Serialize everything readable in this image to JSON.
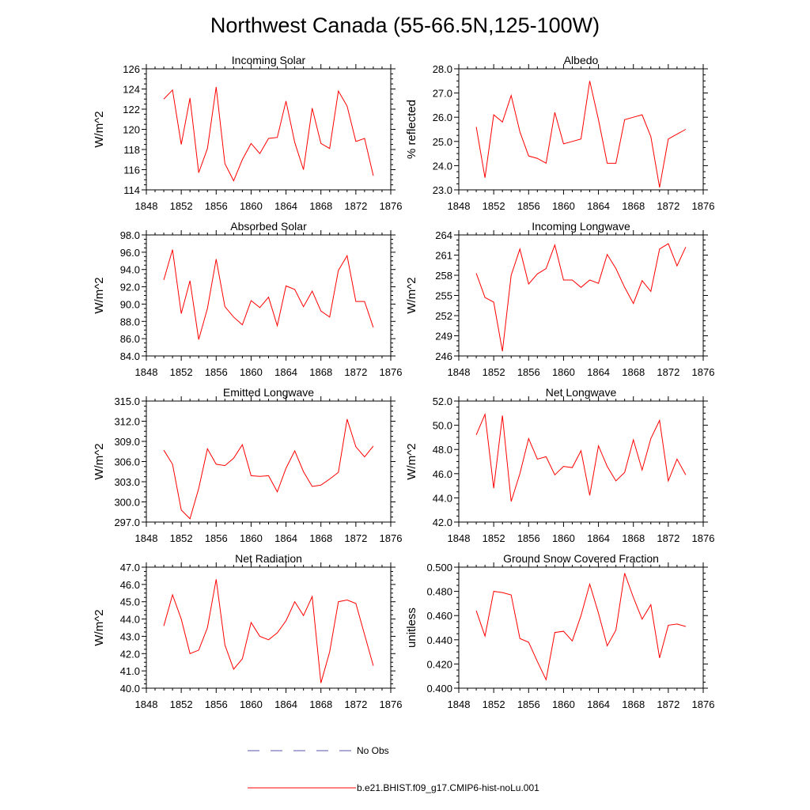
{
  "title": "Northwest Canada (55-66.5N,125-100W)",
  "legend": {
    "entries": [
      {
        "label": "No Obs",
        "color": "#5555aa",
        "dash": true
      },
      {
        "label": "b.e21.BHIST.f09_g17.CMIP6-hist-noLu.001",
        "color": "#ff0000",
        "dash": false
      }
    ]
  },
  "chart_data": [
    {
      "type": "line",
      "title": "Incoming Solar",
      "ylabel": "W/m^2",
      "xlim": [
        1848,
        1876
      ],
      "ylim": [
        114,
        126
      ],
      "xticks": [
        1848,
        1852,
        1856,
        1860,
        1864,
        1868,
        1872,
        1876
      ],
      "yticks": [
        114,
        116,
        118,
        120,
        122,
        124,
        126
      ],
      "ytick_labels": [
        "114",
        "116",
        "118",
        "120",
        "122",
        "124",
        "126"
      ],
      "series": [
        {
          "name": "b.e21.BHIST.f09_g17.CMIP6-hist-noLu.001",
          "color": "#ff0000",
          "x": [
            1850,
            1851,
            1852,
            1853,
            1854,
            1855,
            1856,
            1857,
            1858,
            1859,
            1860,
            1861,
            1862,
            1863,
            1864,
            1865,
            1866,
            1867,
            1868,
            1869,
            1870,
            1871,
            1872,
            1873,
            1874
          ],
          "y": [
            123.0,
            123.9,
            118.5,
            123.1,
            115.7,
            118.1,
            124.2,
            116.6,
            114.9,
            117.0,
            118.6,
            117.6,
            119.1,
            119.2,
            122.8,
            118.7,
            116.0,
            122.1,
            118.6,
            118.1,
            123.8,
            122.3,
            118.8,
            119.1,
            115.4
          ]
        }
      ]
    },
    {
      "type": "line",
      "title": "Albedo",
      "ylabel": "% reflected",
      "xlim": [
        1848,
        1876
      ],
      "ylim": [
        23.0,
        28.0
      ],
      "xticks": [
        1848,
        1852,
        1856,
        1860,
        1864,
        1868,
        1872,
        1876
      ],
      "yticks": [
        23,
        24,
        25,
        26,
        27,
        28
      ],
      "ytick_labels": [
        "23.0",
        "24.0",
        "25.0",
        "26.0",
        "27.0",
        "28.0"
      ],
      "series": [
        {
          "name": "b.e21.BHIST.f09_g17.CMIP6-hist-noLu.001",
          "color": "#ff0000",
          "x": [
            1850,
            1851,
            1852,
            1853,
            1854,
            1855,
            1856,
            1857,
            1858,
            1859,
            1860,
            1861,
            1862,
            1863,
            1864,
            1865,
            1866,
            1867,
            1868,
            1869,
            1870,
            1871,
            1872,
            1873,
            1874
          ],
          "y": [
            25.6,
            23.5,
            26.1,
            25.8,
            26.9,
            25.4,
            24.4,
            24.3,
            24.1,
            26.2,
            24.9,
            25.0,
            25.1,
            27.5,
            25.9,
            24.1,
            24.1,
            25.9,
            26.0,
            26.1,
            25.2,
            23.1,
            25.1,
            25.3,
            25.5
          ]
        }
      ]
    },
    {
      "type": "line",
      "title": "Absorbed Solar",
      "ylabel": "W/m^2",
      "xlim": [
        1848,
        1876
      ],
      "ylim": [
        84.0,
        98.0
      ],
      "xticks": [
        1848,
        1852,
        1856,
        1860,
        1864,
        1868,
        1872,
        1876
      ],
      "yticks": [
        84,
        86,
        88,
        90,
        92,
        94,
        96,
        98
      ],
      "ytick_labels": [
        "84.0",
        "86.0",
        "88.0",
        "90.0",
        "92.0",
        "94.0",
        "96.0",
        "98.0"
      ],
      "series": [
        {
          "name": "b.e21.BHIST.f09_g17.CMIP6-hist-noLu.001",
          "color": "#ff0000",
          "x": [
            1850,
            1851,
            1852,
            1853,
            1854,
            1855,
            1856,
            1857,
            1858,
            1859,
            1860,
            1861,
            1862,
            1863,
            1864,
            1865,
            1866,
            1867,
            1868,
            1869,
            1870,
            1871,
            1872,
            1873,
            1874
          ],
          "y": [
            92.8,
            96.3,
            88.9,
            92.7,
            85.9,
            89.5,
            95.2,
            89.7,
            88.5,
            87.6,
            90.4,
            89.6,
            90.8,
            87.5,
            92.1,
            91.7,
            89.7,
            91.5,
            89.2,
            88.5,
            93.9,
            95.6,
            90.3,
            90.3,
            87.3
          ]
        }
      ]
    },
    {
      "type": "line",
      "title": "Incoming Longwave",
      "ylabel": "W/m^2",
      "xlim": [
        1848,
        1876
      ],
      "ylim": [
        246,
        264
      ],
      "xticks": [
        1848,
        1852,
        1856,
        1860,
        1864,
        1868,
        1872,
        1876
      ],
      "yticks": [
        246,
        249,
        252,
        255,
        258,
        261,
        264
      ],
      "ytick_labels": [
        "246",
        "249",
        "252",
        "255",
        "258",
        "261",
        "264"
      ],
      "series": [
        {
          "name": "b.e21.BHIST.f09_g17.CMIP6-hist-noLu.001",
          "color": "#ff0000",
          "x": [
            1850,
            1851,
            1852,
            1853,
            1854,
            1855,
            1856,
            1857,
            1858,
            1859,
            1860,
            1861,
            1862,
            1863,
            1864,
            1865,
            1866,
            1867,
            1868,
            1869,
            1870,
            1871,
            1872,
            1873,
            1874
          ],
          "y": [
            258.3,
            254.7,
            254.0,
            246.7,
            258.0,
            261.9,
            256.7,
            258.2,
            259.0,
            262.5,
            257.3,
            257.3,
            256.2,
            257.3,
            256.8,
            261.1,
            259.0,
            256.2,
            253.8,
            257.2,
            255.6,
            261.9,
            262.7,
            259.4,
            262.2
          ]
        }
      ]
    },
    {
      "type": "line",
      "title": "Emitted Longwave",
      "ylabel": "W/m^2",
      "xlim": [
        1848,
        1876
      ],
      "ylim": [
        297.0,
        315.0
      ],
      "xticks": [
        1848,
        1852,
        1856,
        1860,
        1864,
        1868,
        1872,
        1876
      ],
      "yticks": [
        297,
        300,
        303,
        306,
        309,
        312,
        315
      ],
      "ytick_labels": [
        "297.0",
        "300.0",
        "303.0",
        "306.0",
        "309.0",
        "312.0",
        "315.0"
      ],
      "series": [
        {
          "name": "b.e21.BHIST.f09_g17.CMIP6-hist-noLu.001",
          "color": "#ff0000",
          "x": [
            1850,
            1851,
            1852,
            1853,
            1854,
            1855,
            1856,
            1857,
            1858,
            1859,
            1860,
            1861,
            1862,
            1863,
            1864,
            1865,
            1866,
            1867,
            1868,
            1869,
            1870,
            1871,
            1872,
            1873,
            1874
          ],
          "y": [
            307.7,
            305.6,
            298.8,
            297.5,
            302.0,
            307.9,
            305.6,
            305.4,
            306.5,
            308.5,
            303.9,
            303.8,
            303.9,
            301.5,
            305.0,
            307.6,
            304.5,
            302.3,
            302.5,
            303.4,
            304.4,
            312.3,
            308.2,
            306.7,
            308.3
          ]
        }
      ]
    },
    {
      "type": "line",
      "title": "Net Longwave",
      "ylabel": "W/m^2",
      "xlim": [
        1848,
        1876
      ],
      "ylim": [
        42.0,
        52.0
      ],
      "xticks": [
        1848,
        1852,
        1856,
        1860,
        1864,
        1868,
        1872,
        1876
      ],
      "yticks": [
        42,
        44,
        46,
        48,
        50,
        52
      ],
      "ytick_labels": [
        "42.0",
        "44.0",
        "46.0",
        "48.0",
        "50.0",
        "52.0"
      ],
      "series": [
        {
          "name": "b.e21.BHIST.f09_g17.CMIP6-hist-noLu.001",
          "color": "#ff0000",
          "x": [
            1850,
            1851,
            1852,
            1853,
            1854,
            1855,
            1856,
            1857,
            1858,
            1859,
            1860,
            1861,
            1862,
            1863,
            1864,
            1865,
            1866,
            1867,
            1868,
            1869,
            1870,
            1871,
            1872,
            1873,
            1874
          ],
          "y": [
            49.2,
            50.9,
            44.8,
            50.8,
            43.7,
            46.0,
            48.9,
            47.2,
            47.4,
            45.9,
            46.6,
            46.5,
            47.9,
            44.2,
            48.3,
            46.6,
            45.4,
            46.1,
            48.8,
            46.3,
            48.9,
            50.4,
            45.4,
            47.2,
            45.9
          ]
        }
      ]
    },
    {
      "type": "line",
      "title": "Net Radiation",
      "ylabel": "W/m^2",
      "xlim": [
        1848,
        1876
      ],
      "ylim": [
        40.0,
        47.0
      ],
      "xticks": [
        1848,
        1852,
        1856,
        1860,
        1864,
        1868,
        1872,
        1876
      ],
      "yticks": [
        40,
        41,
        42,
        43,
        44,
        45,
        46,
        47
      ],
      "ytick_labels": [
        "40.0",
        "41.0",
        "42.0",
        "43.0",
        "44.0",
        "45.0",
        "46.0",
        "47.0"
      ],
      "series": [
        {
          "name": "b.e21.BHIST.f09_g17.CMIP6-hist-noLu.001",
          "color": "#ff0000",
          "x": [
            1850,
            1851,
            1852,
            1853,
            1854,
            1855,
            1856,
            1857,
            1858,
            1859,
            1860,
            1861,
            1862,
            1863,
            1864,
            1865,
            1866,
            1867,
            1868,
            1869,
            1870,
            1871,
            1872,
            1873,
            1874
          ],
          "y": [
            43.6,
            45.4,
            44.0,
            42.0,
            42.2,
            43.5,
            46.3,
            42.5,
            41.1,
            41.7,
            43.8,
            43.0,
            42.8,
            43.2,
            43.9,
            45.0,
            44.2,
            45.3,
            40.3,
            42.1,
            45.0,
            45.1,
            44.9,
            43.1,
            41.3
          ]
        }
      ]
    },
    {
      "type": "line",
      "title": "Ground Snow Covered Fraction",
      "ylabel": "unitless",
      "xlim": [
        1848,
        1876
      ],
      "ylim": [
        0.4,
        0.5
      ],
      "xticks": [
        1848,
        1852,
        1856,
        1860,
        1864,
        1868,
        1872,
        1876
      ],
      "yticks": [
        0.4,
        0.42,
        0.44,
        0.46,
        0.48,
        0.5
      ],
      "ytick_labels": [
        "0.400",
        "0.420",
        "0.440",
        "0.460",
        "0.480",
        "0.500"
      ],
      "series": [
        {
          "name": "b.e21.BHIST.f09_g17.CMIP6-hist-noLu.001",
          "color": "#ff0000",
          "x": [
            1850,
            1851,
            1852,
            1853,
            1854,
            1855,
            1856,
            1857,
            1858,
            1859,
            1860,
            1861,
            1862,
            1863,
            1864,
            1865,
            1866,
            1867,
            1868,
            1869,
            1870,
            1871,
            1872,
            1873,
            1874
          ],
          "y": [
            0.464,
            0.443,
            0.48,
            0.479,
            0.477,
            0.441,
            0.438,
            0.422,
            0.407,
            0.446,
            0.447,
            0.439,
            0.46,
            0.486,
            0.462,
            0.435,
            0.448,
            0.495,
            0.475,
            0.457,
            0.469,
            0.425,
            0.452,
            0.453,
            0.451
          ]
        }
      ]
    }
  ]
}
